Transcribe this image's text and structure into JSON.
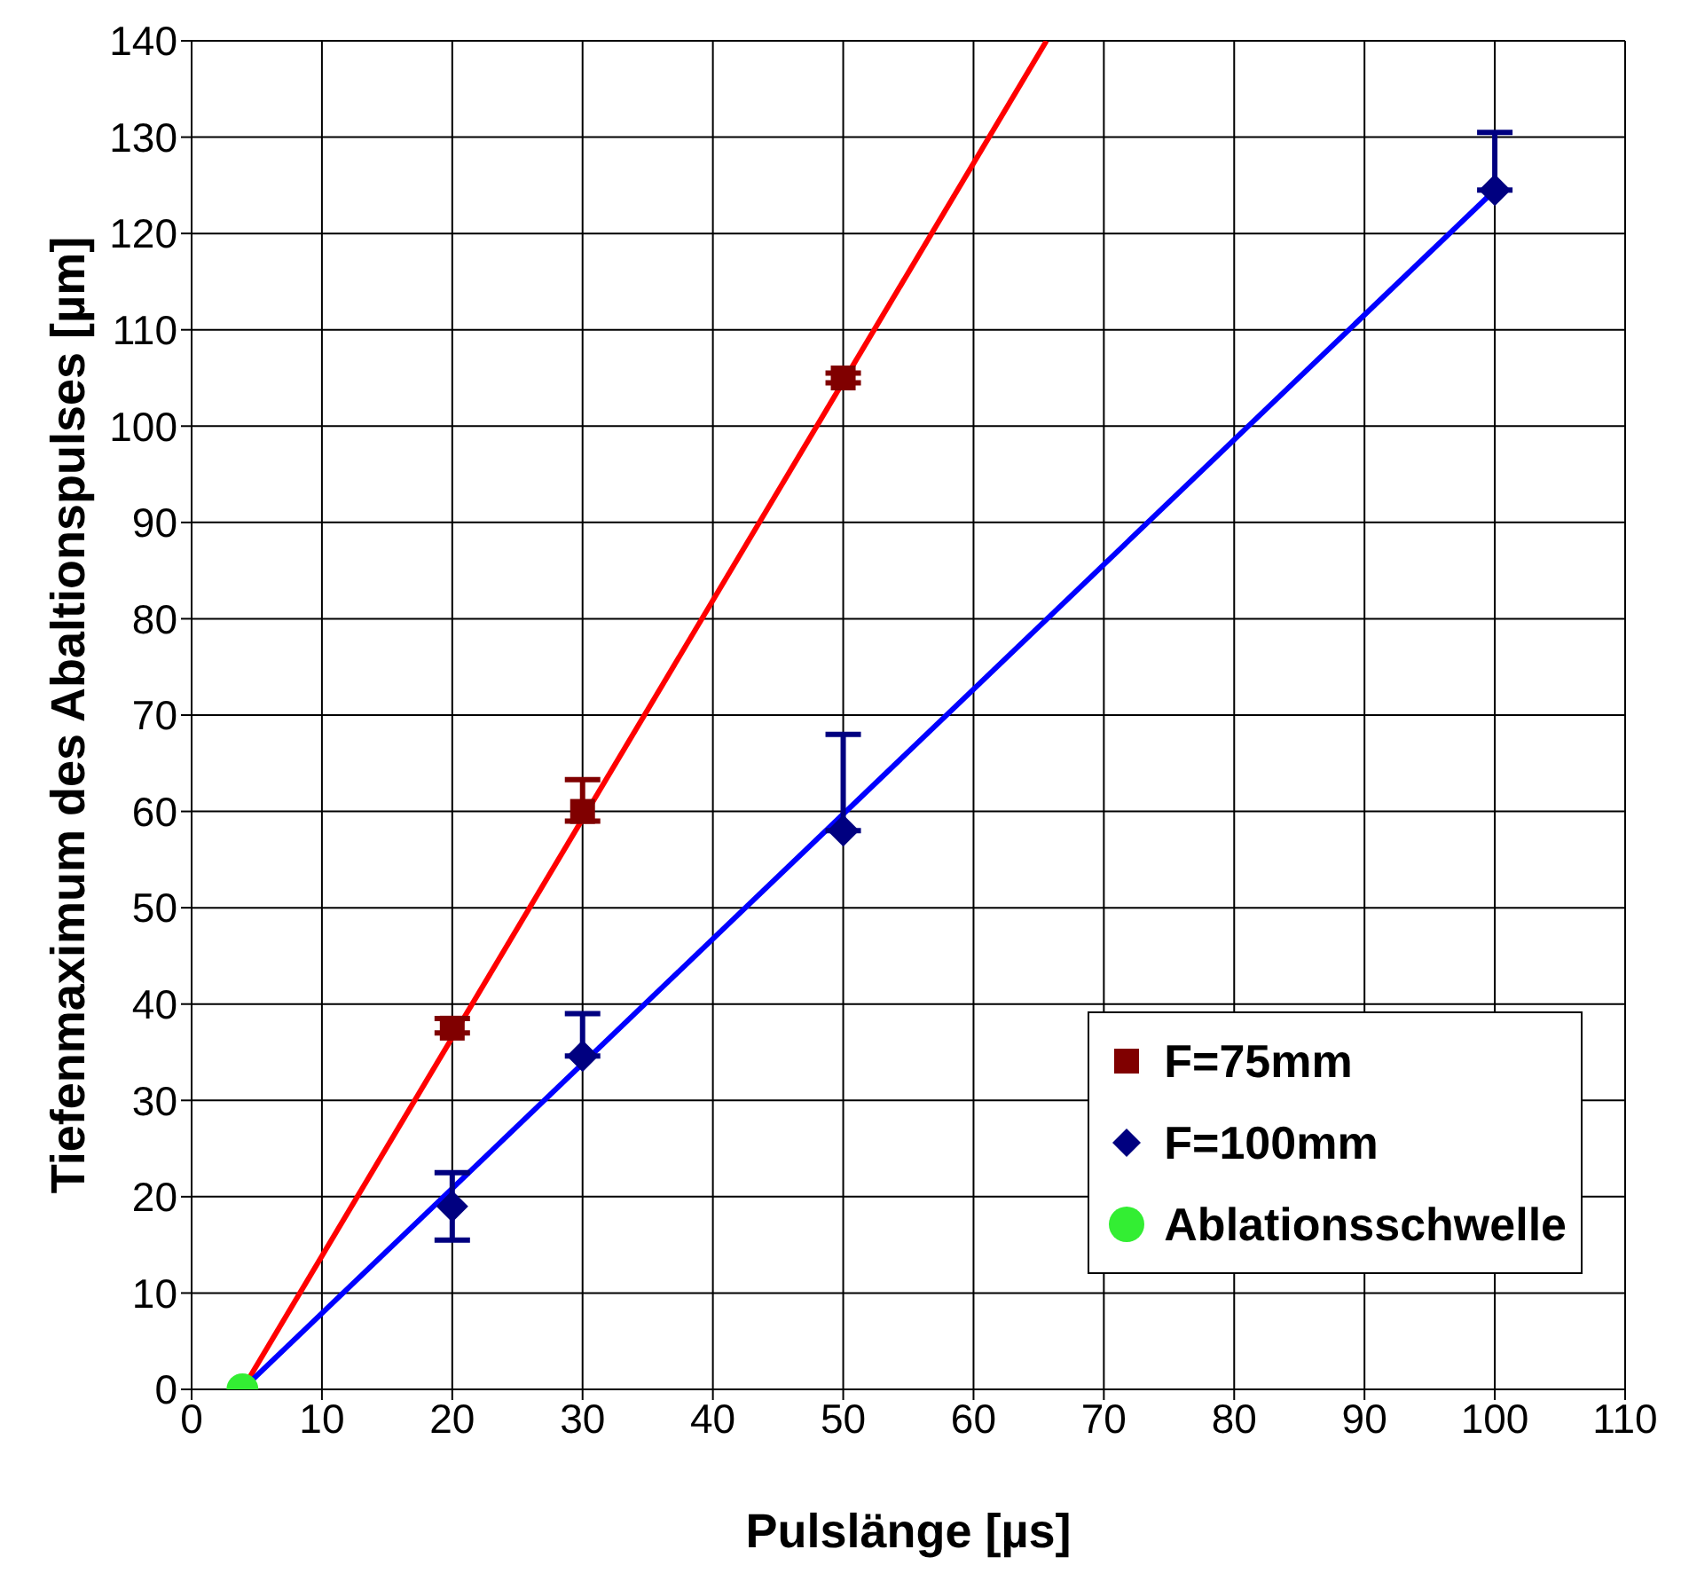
{
  "chart_data": {
    "type": "scatter",
    "xlabel": "Pulslänge [µs]",
    "ylabel": "Tiefenmaximum des Abaltionspulses [µm]",
    "xlim": [
      0,
      110
    ],
    "xticks": [
      0,
      10,
      20,
      30,
      40,
      50,
      60,
      70,
      80,
      90,
      100,
      110
    ],
    "ylim": [
      0,
      140
    ],
    "yticks": [
      0,
      10,
      20,
      30,
      40,
      50,
      60,
      70,
      80,
      90,
      100,
      110,
      120,
      130,
      140
    ],
    "grid": true,
    "legend": "bottom right",
    "series": [
      {
        "name": "F=75mm",
        "marker": "square",
        "color": "#800000",
        "x": [
          20,
          30,
          50
        ],
        "values": [
          37.5,
          60,
          105
        ],
        "errors": [
          [
            37,
            38.5
          ],
          [
            59,
            63.3
          ],
          [
            104.5,
            105.5
          ]
        ]
      },
      {
        "name": "F=100mm",
        "marker": "diamond",
        "color": "#000080",
        "x": [
          20,
          30,
          50,
          100
        ],
        "values": [
          19,
          34.6,
          58,
          124.5
        ],
        "errors": [
          [
            15.5,
            22.5
          ],
          [
            34.6,
            39
          ],
          [
            58,
            68
          ],
          [
            124.5,
            130.5
          ]
        ]
      },
      {
        "name": "Ablationsschwelle",
        "marker": "circle",
        "color": "#33ee33",
        "x": [
          3.9
        ],
        "values": [
          0
        ]
      },
      {
        "type": "line",
        "marker": "none",
        "color": "#ff0000",
        "x": [
          3.9,
          65.6
        ],
        "values": [
          0,
          140
        ]
      },
      {
        "type": "line",
        "marker": "none",
        "color": "#0000ff",
        "x": [
          3.9,
          100
        ],
        "values": [
          0,
          124.5
        ]
      }
    ]
  }
}
